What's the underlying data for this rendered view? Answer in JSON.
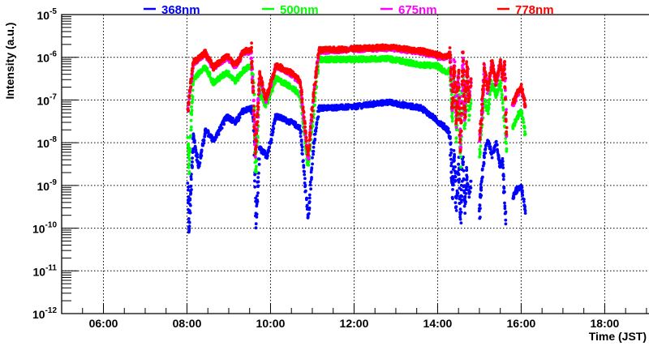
{
  "chart_data": {
    "type": "scatter",
    "title": "",
    "xlabel": "Time (JST)",
    "ylabel": "Intensity (a.u.)",
    "xlim_hours": [
      5,
      19.06
    ],
    "ylim": [
      1e-12,
      1e-05
    ],
    "yscale": "log",
    "grid": true,
    "legend_placement": "top",
    "x_ticks": [
      {
        "h": 6,
        "label": "06:00"
      },
      {
        "h": 8,
        "label": "08:00"
      },
      {
        "h": 10,
        "label": "10:00"
      },
      {
        "h": 12,
        "label": "12:00"
      },
      {
        "h": 14,
        "label": "14:00"
      },
      {
        "h": 16,
        "label": "16:00"
      },
      {
        "h": 18,
        "label": "18:00"
      }
    ],
    "y_ticks": [
      {
        "exp": -5,
        "base": "10",
        "sup": "-5"
      },
      {
        "exp": -6,
        "base": "10",
        "sup": "-6"
      },
      {
        "exp": -7,
        "base": "10",
        "sup": "-7"
      },
      {
        "exp": -8,
        "base": "10",
        "sup": "-8"
      },
      {
        "exp": -9,
        "base": "10",
        "sup": "-9"
      },
      {
        "exp": -10,
        "base": "10",
        "sup": "-10"
      },
      {
        "exp": -11,
        "base": "10",
        "sup": "-11"
      },
      {
        "exp": -12,
        "base": "10",
        "sup": "-12"
      }
    ],
    "point_format": [
      "time_hours",
      "log10_intensity"
    ],
    "series": [
      {
        "name": "368nm",
        "color": "#0000ff",
        "segments": [
          [
            [
              8.02,
              -9.0
            ],
            [
              8.05,
              -10.1
            ],
            [
              8.1,
              -9.0
            ],
            [
              8.15,
              -7.83
            ],
            [
              8.28,
              -8.59
            ],
            [
              8.44,
              -7.7
            ],
            [
              8.64,
              -7.95
            ],
            [
              8.96,
              -7.37
            ],
            [
              9.16,
              -7.53
            ],
            [
              9.35,
              -7.25
            ],
            [
              9.54,
              -7.19
            ],
            [
              9.6,
              -7.5
            ],
            [
              9.65,
              -9.97
            ],
            [
              9.74,
              -8.13
            ],
            [
              9.92,
              -8.32
            ],
            [
              10.13,
              -7.37
            ],
            [
              10.51,
              -7.53
            ],
            [
              10.71,
              -7.65
            ],
            [
              10.9,
              -9.78
            ],
            [
              11.03,
              -8.1
            ],
            [
              11.16,
              -7.19
            ],
            [
              12.0,
              -7.16
            ],
            [
              12.8,
              -7.05
            ],
            [
              13.62,
              -7.19
            ],
            [
              14.01,
              -7.5
            ],
            [
              14.25,
              -7.7
            ],
            [
              14.3,
              -7.9
            ],
            [
              14.35,
              -9.2
            ],
            [
              14.4,
              -8.2
            ],
            [
              14.45,
              -9.6
            ],
            [
              14.5,
              -8.5
            ],
            [
              14.55,
              -9.84
            ],
            [
              14.6,
              -8.3
            ],
            [
              14.65,
              -9.5
            ],
            [
              14.7,
              -8.7
            ],
            [
              14.75,
              -9.3
            ],
            [
              14.8,
              -8.9
            ]
          ],
          [
            [
              15.0,
              -9.8
            ],
            [
              15.05,
              -9.0
            ],
            [
              15.12,
              -8.26
            ],
            [
              15.2,
              -7.94
            ],
            [
              15.3,
              -8.3
            ],
            [
              15.4,
              -8.0
            ],
            [
              15.5,
              -8.6
            ],
            [
              15.56,
              -8.4
            ],
            [
              15.63,
              -9.9
            ]
          ],
          [
            [
              15.8,
              -9.27
            ],
            [
              15.9,
              -9.1
            ],
            [
              16.0,
              -9.02
            ],
            [
              16.05,
              -9.3
            ],
            [
              16.1,
              -9.65
            ]
          ]
        ]
      },
      {
        "name": "500nm",
        "color": "#00ff00",
        "segments": [
          [
            [
              8.02,
              -7.9
            ],
            [
              8.06,
              -8.6
            ],
            [
              8.1,
              -7.4
            ],
            [
              8.15,
              -6.5
            ],
            [
              8.44,
              -6.24
            ],
            [
              8.64,
              -6.6
            ],
            [
              8.96,
              -6.35
            ],
            [
              9.16,
              -6.56
            ],
            [
              9.35,
              -6.3
            ],
            [
              9.54,
              -6.2
            ],
            [
              9.6,
              -6.6
            ],
            [
              9.64,
              -8.78
            ],
            [
              9.74,
              -6.8
            ],
            [
              9.89,
              -7.13
            ],
            [
              10.13,
              -6.5
            ],
            [
              10.51,
              -6.7
            ],
            [
              10.71,
              -6.9
            ],
            [
              10.9,
              -8.57
            ],
            [
              11.03,
              -7.3
            ],
            [
              11.16,
              -6.05
            ],
            [
              12.0,
              -6.05
            ],
            [
              12.8,
              -6.03
            ],
            [
              13.62,
              -6.18
            ],
            [
              14.0,
              -6.2
            ],
            [
              14.2,
              -6.37
            ],
            [
              14.3,
              -6.3
            ],
            [
              14.35,
              -7.5
            ],
            [
              14.4,
              -6.5
            ],
            [
              14.45,
              -7.9
            ],
            [
              14.5,
              -6.7
            ],
            [
              14.55,
              -8.4
            ],
            [
              14.6,
              -6.4
            ],
            [
              14.65,
              -7.7
            ],
            [
              14.7,
              -6.6
            ],
            [
              14.75,
              -7.4
            ],
            [
              14.8,
              -7.0
            ]
          ],
          [
            [
              15.0,
              -8.3
            ],
            [
              15.12,
              -6.95
            ],
            [
              15.2,
              -7.3
            ],
            [
              15.3,
              -6.6
            ],
            [
              15.4,
              -6.9
            ],
            [
              15.5,
              -6.6
            ],
            [
              15.56,
              -7.0
            ],
            [
              15.65,
              -8.2
            ]
          ],
          [
            [
              15.8,
              -7.64
            ],
            [
              15.9,
              -7.4
            ],
            [
              16.0,
              -7.25
            ],
            [
              16.05,
              -7.5
            ],
            [
              16.1,
              -7.8
            ]
          ]
        ]
      },
      {
        "name": "675nm",
        "color": "#ff00ff",
        "segments": [
          [
            [
              8.02,
              -7.3
            ],
            [
              8.15,
              -6.14
            ],
            [
              8.44,
              -5.92
            ],
            [
              8.64,
              -6.27
            ],
            [
              8.96,
              -5.99
            ],
            [
              9.16,
              -6.21
            ],
            [
              9.35,
              -5.89
            ],
            [
              9.54,
              -5.86
            ],
            [
              9.64,
              -8.3
            ],
            [
              9.74,
              -6.4
            ],
            [
              9.89,
              -7.03
            ],
            [
              10.13,
              -6.21
            ],
            [
              10.51,
              -6.4
            ],
            [
              10.71,
              -6.59
            ],
            [
              10.9,
              -8.35
            ],
            [
              11.03,
              -6.9
            ],
            [
              11.16,
              -5.86
            ],
            [
              12.0,
              -5.82
            ],
            [
              12.8,
              -5.79
            ],
            [
              13.62,
              -5.88
            ],
            [
              14.01,
              -5.98
            ],
            [
              14.2,
              -6.03
            ],
            [
              14.3,
              -5.93
            ],
            [
              14.35,
              -7.23
            ],
            [
              14.4,
              -6.13
            ],
            [
              14.45,
              -7.53
            ],
            [
              14.5,
              -6.33
            ],
            [
              14.55,
              -8.23
            ],
            [
              14.6,
              -5.93
            ],
            [
              14.65,
              -7.43
            ],
            [
              14.7,
              -6.23
            ],
            [
              14.75,
              -7.03
            ],
            [
              14.8,
              -6.53
            ]
          ],
          [
            [
              15.0,
              -7.93
            ],
            [
              15.05,
              -7.43
            ],
            [
              15.12,
              -6.23
            ],
            [
              15.2,
              -6.83
            ],
            [
              15.3,
              -6.13
            ],
            [
              15.4,
              -6.63
            ],
            [
              15.5,
              -6.13
            ],
            [
              15.56,
              -6.53
            ],
            [
              15.6,
              -6.13
            ],
            [
              15.65,
              -7.83
            ]
          ],
          [
            [
              15.8,
              -7.13
            ],
            [
              15.9,
              -6.88
            ],
            [
              16.0,
              -6.72
            ],
            [
              16.05,
              -6.93
            ],
            [
              16.1,
              -7.16
            ]
          ]
        ]
      },
      {
        "name": "778nm",
        "color": "#ff0000",
        "segments": [
          [
            [
              8.02,
              -7.25
            ],
            [
              8.15,
              -6.11
            ],
            [
              8.44,
              -5.89
            ],
            [
              8.64,
              -6.24
            ],
            [
              8.96,
              -5.96
            ],
            [
              9.16,
              -6.18
            ],
            [
              9.35,
              -5.86
            ],
            [
              9.54,
              -5.83
            ],
            [
              9.64,
              -8.26
            ],
            [
              9.74,
              -6.37
            ],
            [
              9.89,
              -7.0
            ],
            [
              10.13,
              -6.18
            ],
            [
              10.51,
              -6.37
            ],
            [
              10.71,
              -6.56
            ],
            [
              10.9,
              -8.32
            ],
            [
              11.03,
              -6.87
            ],
            [
              11.16,
              -5.83
            ],
            [
              12.0,
              -5.8
            ],
            [
              12.8,
              -5.76
            ],
            [
              13.62,
              -5.85
            ],
            [
              14.01,
              -5.95
            ],
            [
              14.2,
              -6.0
            ],
            [
              14.3,
              -5.9
            ],
            [
              14.35,
              -7.2
            ],
            [
              14.4,
              -6.1
            ],
            [
              14.45,
              -7.5
            ],
            [
              14.5,
              -6.3
            ],
            [
              14.55,
              -8.2
            ],
            [
              14.6,
              -5.9
            ],
            [
              14.65,
              -7.4
            ],
            [
              14.7,
              -6.2
            ],
            [
              14.75,
              -7.0
            ],
            [
              14.8,
              -6.5
            ]
          ],
          [
            [
              15.0,
              -7.9
            ],
            [
              15.05,
              -7.4
            ],
            [
              15.12,
              -6.2
            ],
            [
              15.2,
              -6.8
            ],
            [
              15.3,
              -6.1
            ],
            [
              15.4,
              -6.6
            ],
            [
              15.5,
              -6.1
            ],
            [
              15.56,
              -6.5
            ],
            [
              15.6,
              -6.1
            ],
            [
              15.65,
              -7.8
            ]
          ],
          [
            [
              15.8,
              -7.1
            ],
            [
              15.9,
              -6.85
            ],
            [
              16.0,
              -6.69
            ],
            [
              16.05,
              -6.9
            ],
            [
              16.1,
              -7.13
            ]
          ]
        ]
      }
    ]
  }
}
